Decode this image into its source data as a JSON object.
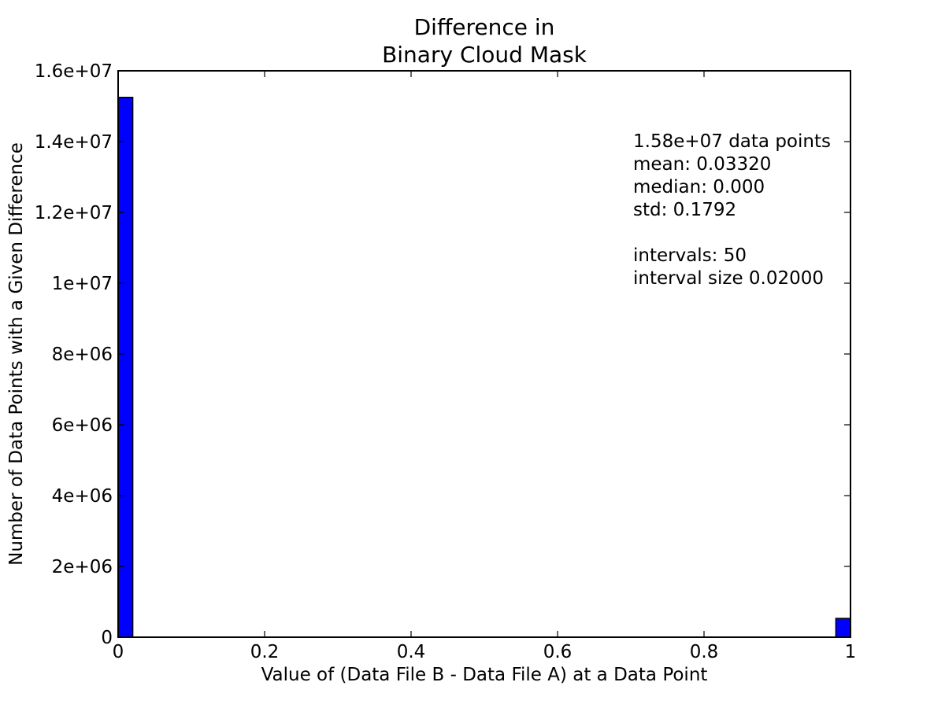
{
  "chart_data": {
    "type": "bar",
    "title_lines": [
      "Difference in",
      "Binary Cloud Mask"
    ],
    "xlabel": "Value of (Data File B - Data File A) at a Data Point",
    "ylabel": "Number of Data Points with a Given Difference",
    "xlim": [
      0,
      1
    ],
    "ylim": [
      0,
      16000000
    ],
    "x_ticks": [
      0,
      0.2,
      0.4,
      0.6,
      0.8,
      1
    ],
    "x_tick_labels": [
      "0",
      "0.2",
      "0.4",
      "0.6",
      "0.8",
      "1"
    ],
    "y_ticks": [
      0,
      2000000,
      4000000,
      6000000,
      8000000,
      10000000,
      12000000,
      14000000,
      16000000
    ],
    "y_tick_labels": [
      "0",
      "2e+06",
      "4e+06",
      "6e+06",
      "8e+06",
      "1e+07",
      "1.2e+07",
      "1.4e+07",
      "1.6e+07"
    ],
    "grid": false,
    "bar_color": "#0000ff",
    "bins": [
      {
        "x0": 0.0,
        "x1": 0.02,
        "value": 15250000
      },
      {
        "x0": 0.98,
        "x1": 1.0,
        "value": 530000
      }
    ],
    "annotation_lines": [
      "1.58e+07 data points",
      "mean: 0.03320",
      "median: 0.000",
      "std: 0.1792",
      "",
      "intervals: 50",
      "interval size 0.02000"
    ]
  }
}
